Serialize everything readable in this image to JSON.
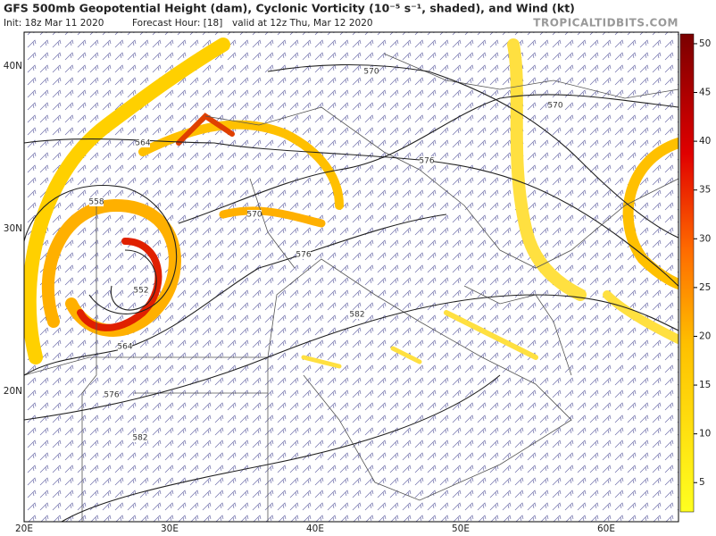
{
  "header": {
    "title": "GFS 500mb Geopotential Height (dam), Cyclonic Vorticity (10⁻⁵ s⁻¹, shaded), and Wind (kt)",
    "init": "Init: 18z Mar 11 2020",
    "forecast_hour": "Forecast Hour: [18]",
    "valid": "valid at 12z Thu, Mar 12 2020",
    "watermark": "TROPICALTIDBITS.COM"
  },
  "map": {
    "lat_labels": [
      "40N",
      "30N",
      "20N"
    ],
    "lon_labels": [
      "20E",
      "30E",
      "40E",
      "50E",
      "60E"
    ],
    "contour_labels": [
      "570",
      "570",
      "564",
      "576",
      "558",
      "570",
      "576",
      "552",
      "582",
      "564",
      "576",
      "582"
    ]
  },
  "colorbar": {
    "lim": [
      2,
      51
    ],
    "ticks": [
      5,
      10,
      15,
      20,
      25,
      30,
      35,
      40,
      45,
      50
    ]
  }
}
